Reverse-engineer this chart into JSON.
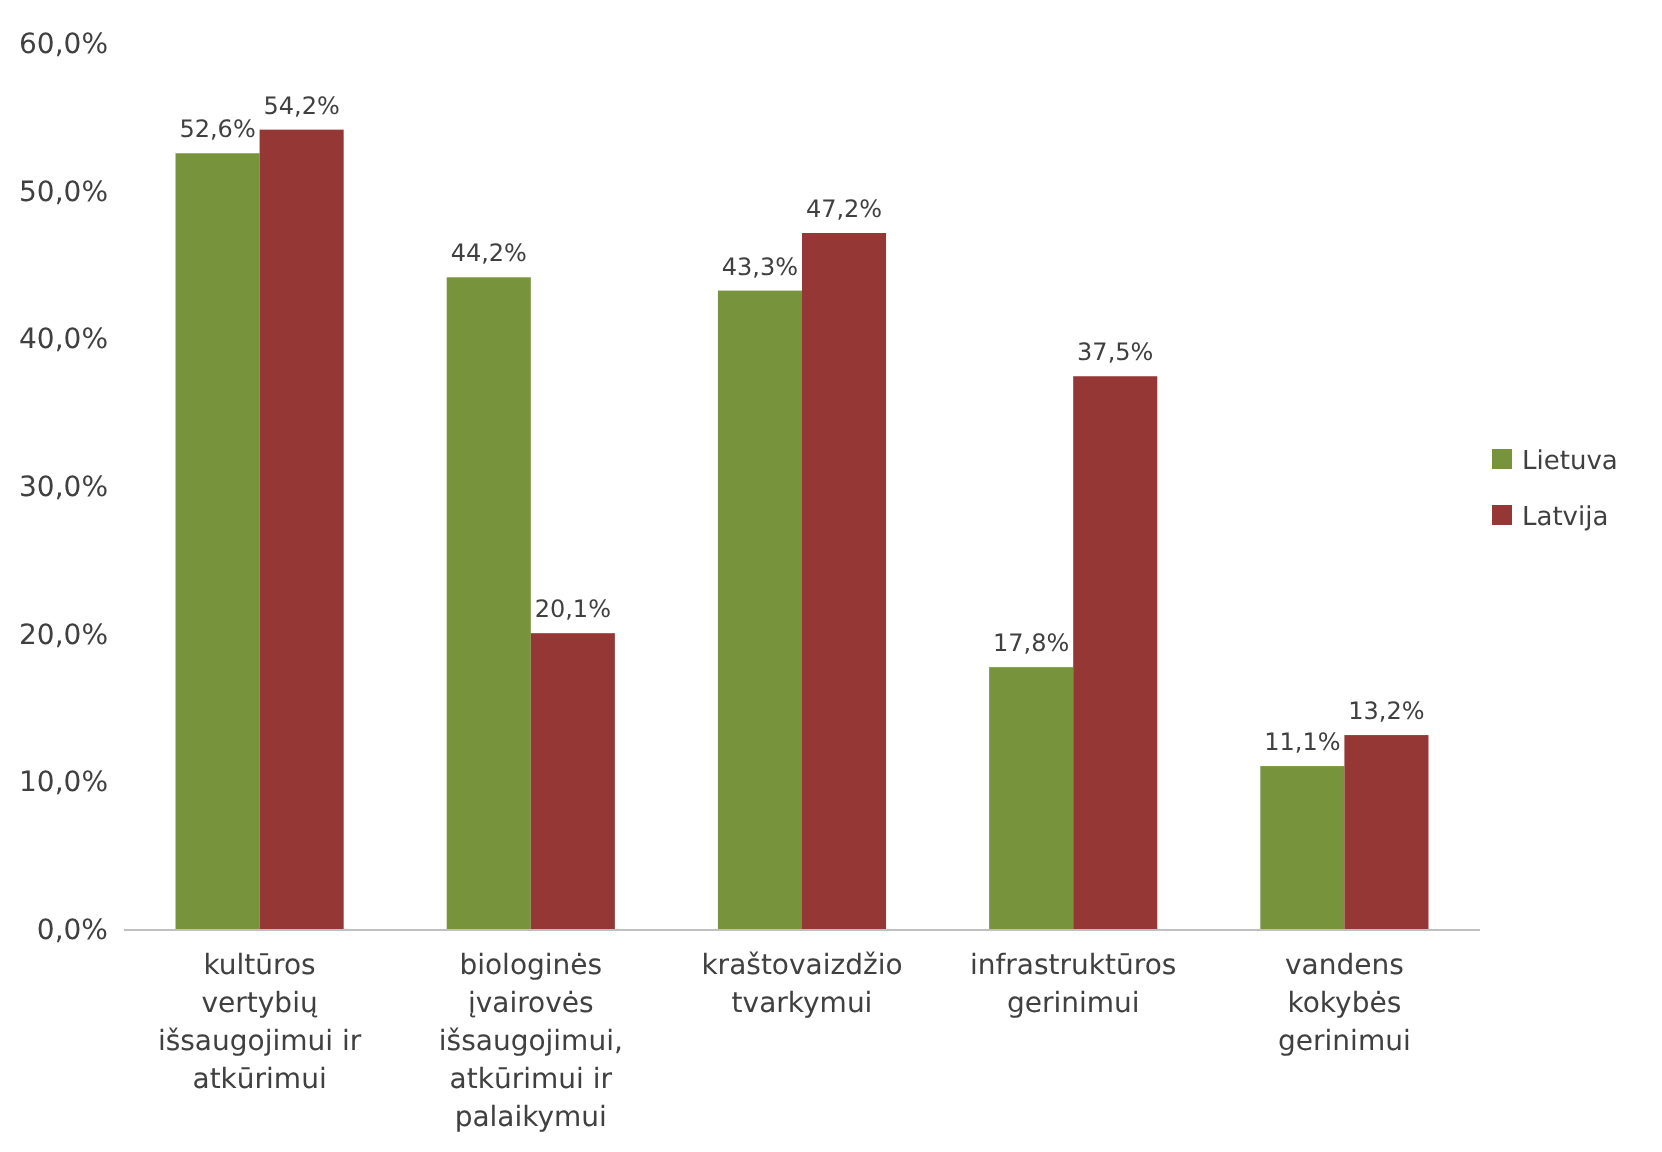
{
  "chart_data": {
    "type": "bar",
    "categories": [
      "kultūros vertybių išsaugojimui ir atkūrimui",
      "biologinės įvairovės išsaugojimui, atkūrimui ir palaikymui",
      "kraštovaizdžio tvarkymui",
      "infrastruktūros gerinimui",
      "vandens kokybės gerinimui"
    ],
    "series": [
      {
        "name": "Lietuva",
        "color": "#77933c",
        "values": [
          52.6,
          44.2,
          43.3,
          17.8,
          11.1
        ],
        "value_labels": [
          "52,6%",
          "44,2%",
          "43,3%",
          "17,8%",
          "11,1%"
        ]
      },
      {
        "name": "Latvija",
        "color": "#953735",
        "values": [
          54.2,
          20.1,
          47.2,
          37.5,
          13.2
        ],
        "value_labels": [
          "54,2%",
          "20,1%",
          "47,2%",
          "37,5%",
          "13,2%"
        ]
      }
    ],
    "ylim": [
      0,
      60
    ],
    "yticks": [
      {
        "value": 0,
        "label": "0,0%"
      },
      {
        "value": 10,
        "label": "10,0%"
      },
      {
        "value": 20,
        "label": "20,0%"
      },
      {
        "value": 30,
        "label": "30,0%"
      },
      {
        "value": 40,
        "label": "40,0%"
      },
      {
        "value": 50,
        "label": "50,0%"
      },
      {
        "value": 60,
        "label": "60,0%"
      }
    ],
    "grid": false,
    "legend": "right"
  }
}
